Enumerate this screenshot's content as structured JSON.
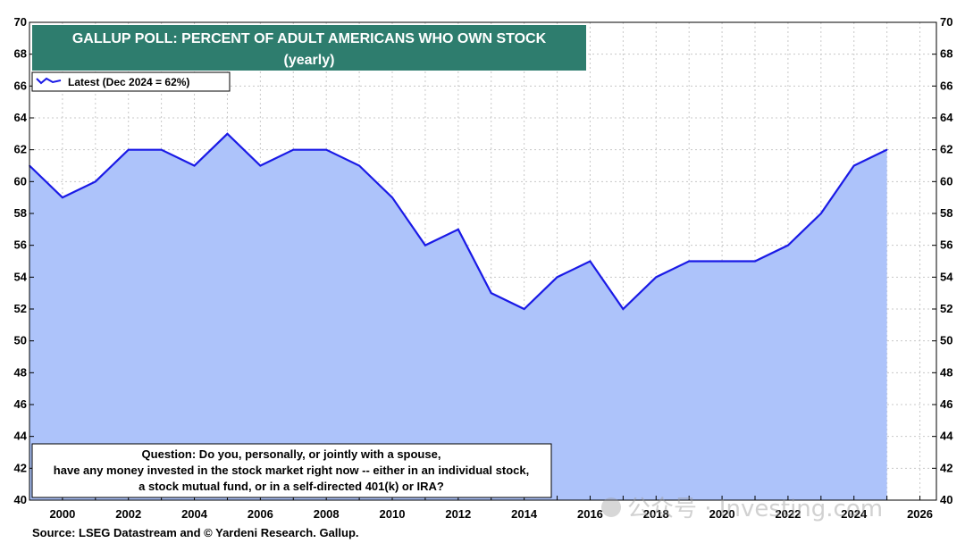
{
  "chart_data": {
    "type": "area",
    "title": "GALLUP POLL: PERCENT OF ADULT AMERICANS WHO OWN STOCK",
    "subtitle": "(yearly)",
    "xlabel": "",
    "ylabel": "",
    "xlim": [
      1999,
      2026.5
    ],
    "ylim": [
      40,
      70
    ],
    "yticks": [
      40,
      42,
      44,
      46,
      48,
      50,
      52,
      54,
      56,
      58,
      60,
      62,
      64,
      66,
      68,
      70
    ],
    "xticks": [
      2000,
      2002,
      2004,
      2006,
      2008,
      2010,
      2012,
      2014,
      2016,
      2018,
      2020,
      2022,
      2024,
      2026
    ],
    "grid": true,
    "legend": {
      "placement": "top-left",
      "entry": "Latest (Dec 2024 = 62%)"
    },
    "series": [
      {
        "name": "Latest (Dec 2024 = 62%)",
        "color": "#1a1ae6",
        "fill": "#adc3fa",
        "x": [
          1999,
          2000,
          2001,
          2002,
          2003,
          2004,
          2005,
          2006,
          2007,
          2008,
          2009,
          2010,
          2011,
          2012,
          2013,
          2014,
          2015,
          2016,
          2017,
          2018,
          2019,
          2020,
          2021,
          2022,
          2023,
          2024,
          2025
        ],
        "y": [
          61,
          59,
          60,
          62,
          62,
          61,
          63,
          61,
          62,
          62,
          61,
          59,
          56,
          57,
          53,
          52,
          54,
          55,
          52,
          54,
          55,
          55,
          55,
          56,
          58,
          61,
          62
        ]
      }
    ],
    "annotation": [
      "Question: Do you, personally, or jointly with a spouse,",
      "have any money invested in the stock market right now -- either in an individual stock,",
      "a stock mutual fund, or in a self-directed 401(k) or IRA?"
    ],
    "source": "Source: LSEG Datastream and © Yardeni Research. Gallup.",
    "title_bg": "#2e7d6e"
  },
  "watermark": "公众号 · Investing.com"
}
